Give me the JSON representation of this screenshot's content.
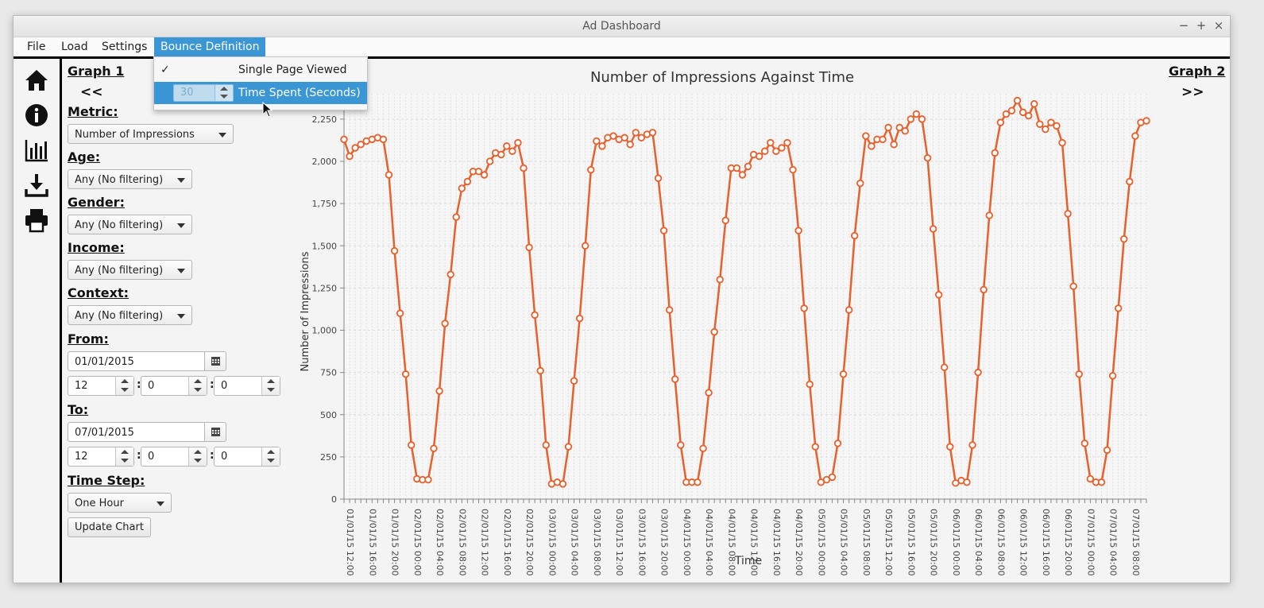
{
  "window": {
    "title": "Ad Dashboard",
    "controls": [
      "−",
      "+",
      "×"
    ]
  },
  "menubar": {
    "items": [
      "File",
      "Load",
      "Settings",
      "Bounce Definition"
    ],
    "active": "Bounce Definition"
  },
  "bounce_menu": {
    "items": [
      {
        "label": "Single Page Viewed",
        "checked": true
      },
      {
        "label": "Time Spent (Seconds)",
        "checked": false,
        "spinner_value": "30"
      }
    ]
  },
  "sidebar": {
    "icons": [
      "home-icon",
      "info-icon",
      "bar-chart-icon",
      "download-icon",
      "print-icon"
    ]
  },
  "panel": {
    "graph1_label": "Graph 1",
    "prev_arrow": "<<",
    "graph2_label": "Graph 2",
    "next_arrow": ">>",
    "metric_label": "Metric:",
    "metric_value": "Number of Impressions",
    "age_label": "Age:",
    "age_value": "Any (No filtering)",
    "gender_label": "Gender:",
    "gender_value": "Any (No filtering)",
    "income_label": "Income:",
    "income_value": "Any (No filtering)",
    "context_label": "Context:",
    "context_value": "Any (No filtering)",
    "from_label": "From:",
    "from_date": "01/01/2015",
    "from_hour": "12",
    "from_minute": "0",
    "from_second": "0",
    "to_label": "To:",
    "to_date": "07/01/2015",
    "to_hour": "12",
    "to_minute": "0",
    "to_second": "0",
    "timestep_label": "Time Step:",
    "timestep_value": "One Hour",
    "update_button": "Update Chart"
  },
  "chart_data": {
    "type": "line",
    "title": "Number of Impressions Against Time",
    "xlabel": "Time",
    "ylabel": "Number of Impressions",
    "ylim": [
      0,
      2400
    ],
    "yticks": [
      0,
      250,
      500,
      750,
      1000,
      1250,
      1500,
      1750,
      2000,
      2250
    ],
    "grid": true,
    "color": "#e8602c",
    "x_tick_labels": [
      "01/01/15 12:00",
      "01/01/15 16:00",
      "01/01/15 20:00",
      "02/01/15 00:00",
      "02/01/15 04:00",
      "02/01/15 08:00",
      "02/01/15 12:00",
      "02/01/15 16:00",
      "02/01/15 20:00",
      "03/01/15 00:00",
      "03/01/15 04:00",
      "03/01/15 08:00",
      "03/01/15 12:00",
      "03/01/15 16:00",
      "03/01/15 20:00",
      "04/01/15 00:00",
      "04/01/15 04:00",
      "04/01/15 08:00",
      "04/01/15 12:00",
      "04/01/15 16:00",
      "04/01/15 20:00",
      "05/01/15 00:00",
      "05/01/15 04:00",
      "05/01/15 08:00",
      "05/01/15 12:00",
      "05/01/15 16:00",
      "05/01/15 20:00",
      "06/01/15 00:00",
      "06/01/15 04:00",
      "06/01/15 08:00",
      "06/01/15 12:00",
      "06/01/15 16:00",
      "06/01/15 20:00",
      "07/01/15 00:00",
      "07/01/15 04:00",
      "07/01/15 08:00"
    ],
    "values": [
      2130,
      2030,
      2080,
      2100,
      2120,
      2130,
      2140,
      2130,
      1920,
      1470,
      1100,
      740,
      320,
      120,
      115,
      115,
      300,
      640,
      1040,
      1330,
      1670,
      1840,
      1880,
      1940,
      1940,
      1920,
      2000,
      2050,
      2040,
      2090,
      2060,
      2110,
      1960,
      1490,
      1090,
      760,
      320,
      90,
      100,
      90,
      310,
      700,
      1070,
      1500,
      1950,
      2120,
      2090,
      2140,
      2150,
      2130,
      2140,
      2100,
      2170,
      2140,
      2160,
      2170,
      1900,
      1590,
      1120,
      710,
      320,
      100,
      100,
      100,
      300,
      630,
      990,
      1300,
      1650,
      1960,
      1960,
      1920,
      1970,
      2040,
      2030,
      2060,
      2110,
      2060,
      2080,
      2110,
      1950,
      1590,
      1130,
      680,
      310,
      100,
      115,
      130,
      330,
      740,
      1120,
      1560,
      1870,
      2150,
      2090,
      2130,
      2130,
      2200,
      2100,
      2200,
      2180,
      2250,
      2280,
      2250,
      2020,
      1600,
      1210,
      780,
      310,
      95,
      110,
      100,
      320,
      750,
      1240,
      1680,
      2050,
      2230,
      2280,
      2300,
      2360,
      2290,
      2270,
      2340,
      2220,
      2190,
      2230,
      2210,
      2110,
      1690,
      1260,
      740,
      330,
      120,
      100,
      100,
      290,
      730,
      1130,
      1540,
      1880,
      2150,
      2230,
      2240
    ]
  }
}
